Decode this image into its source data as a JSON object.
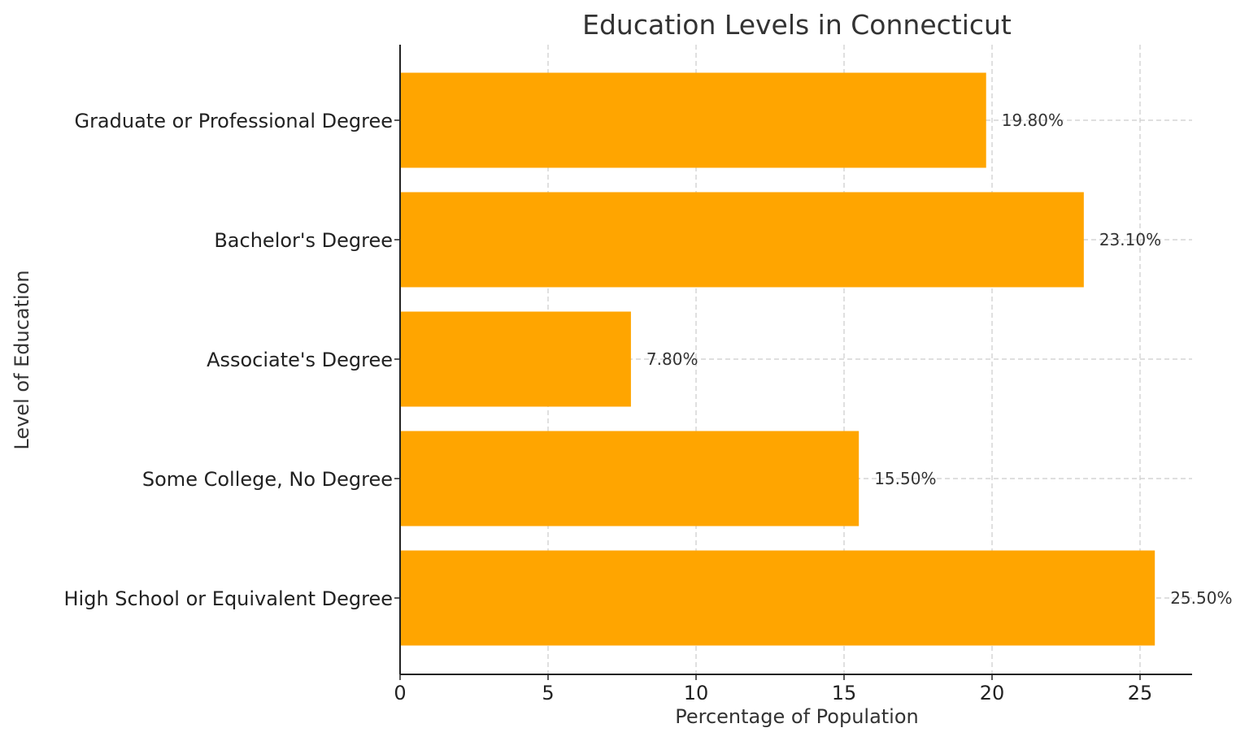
{
  "chart_data": {
    "type": "bar",
    "orientation": "horizontal",
    "title": "Education Levels in Connecticut",
    "xlabel": "Percentage of Population",
    "ylabel": "Level of Education",
    "categories": [
      "High School or Equivalent Degree",
      "Some College, No Degree",
      "Associate's Degree",
      "Bachelor's Degree",
      "Graduate or Professional Degree"
    ],
    "values": [
      25.5,
      15.5,
      7.8,
      23.1,
      19.8
    ],
    "value_labels": [
      "25.50%",
      "15.50%",
      "7.80%",
      "23.10%",
      "19.80%"
    ],
    "xlim": [
      0,
      26.8
    ],
    "xticks": [
      0,
      5,
      10,
      15,
      20,
      25
    ],
    "grid": true,
    "grid_style": "dashed",
    "bar_color": "#FFA500",
    "legend": null
  }
}
